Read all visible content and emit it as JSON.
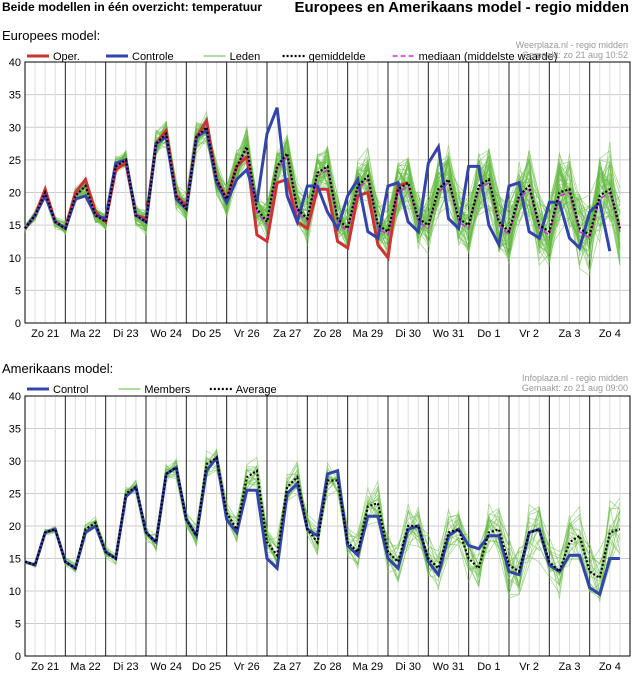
{
  "page": {
    "title_left": "Beide modellen in één overzicht: temperatuur",
    "title_right": "Europees en Amerikaans model - regio midden"
  },
  "chart_data": [
    {
      "type": "line",
      "section_title": "Europees model:",
      "credit_line1": "Weerplaza.nl - regio midden",
      "credit_line2": "Gemaakt: zo 21 aug 10:52",
      "ylim": [
        0,
        40
      ],
      "yticks": [
        0,
        5,
        10,
        15,
        20,
        25,
        30,
        35,
        40
      ],
      "xlim": [
        0,
        15
      ],
      "day_labels": [
        "Zo 21",
        "Ma 22",
        "Di 23",
        "Wo 24",
        "Do 25",
        "Vr 26",
        "Za 27",
        "Zo 28",
        "Ma 29",
        "Di 30",
        "Wo 31",
        "Do 1",
        "Vr 2",
        "Za 3",
        "Zo 4"
      ],
      "legend": [
        "Oper.",
        "Controle",
        "Leden",
        "gemiddelde",
        "mediaan (middelste waarde)"
      ],
      "x_step": 0.25,
      "series": {
        "oper": {
          "name": "Oper.",
          "color": "#cc3333",
          "values": [
            14.5,
            16.5,
            20.5,
            15.5,
            14.5,
            20,
            22,
            17,
            15.5,
            23.5,
            24.5,
            16.5,
            16,
            27.5,
            29.5,
            19.5,
            18,
            28.5,
            31,
            22,
            19,
            24,
            25.5,
            13.5,
            12.5,
            21.5,
            22,
            15.5,
            14.5,
            20.5,
            20.5,
            12.5,
            11.5,
            19.5,
            20,
            12,
            10,
            21,
            21.5
          ]
        },
        "control": {
          "name": "Controle",
          "color": "#3344aa",
          "values": [
            14.5,
            16.5,
            19.5,
            15.5,
            14.5,
            19,
            19.5,
            16.5,
            16,
            24.5,
            25,
            16.5,
            15.5,
            27.5,
            28.5,
            19,
            17.5,
            28.5,
            29.5,
            21.5,
            18.5,
            22,
            23.5,
            18.5,
            29,
            33,
            19.5,
            15.5,
            21,
            21,
            17,
            14.5,
            19.5,
            22,
            14,
            13,
            21,
            21.5,
            15.5,
            14,
            24.5,
            27,
            16,
            14.5,
            24,
            24,
            15,
            12,
            21,
            21.5,
            14,
            13,
            18.5,
            18.5,
            13,
            11.5,
            17,
            18.5,
            11
          ]
        },
        "mean": {
          "name": "gemiddelde",
          "color": "#000000",
          "values": [
            14.5,
            16.5,
            20,
            15.5,
            14.5,
            19.5,
            21,
            16.5,
            15.5,
            24,
            25,
            16.5,
            15.5,
            27.5,
            29,
            19.5,
            17.5,
            28.5,
            30,
            22,
            19,
            24,
            27,
            17.5,
            15.5,
            24,
            26,
            17.5,
            16,
            23,
            24,
            16,
            14.5,
            21,
            22.5,
            15,
            14,
            20.5,
            21.5,
            16,
            15,
            20.5,
            22,
            16,
            15,
            21,
            22,
            15.5,
            14,
            19.5,
            21,
            15,
            14,
            20,
            20.5,
            14.5,
            13.5,
            19.5,
            20.5,
            14.5
          ]
        },
        "median": {
          "name": "mediaan (middelste waarde)",
          "color": "#cc33cc",
          "values": [
            14.5,
            16.5,
            20,
            15.5,
            14.5,
            19.5,
            21,
            16.5,
            15.5,
            24,
            25,
            16.5,
            15.5,
            27.5,
            29,
            19.5,
            17.5,
            28.5,
            30,
            22,
            19,
            24,
            26.5,
            17,
            15,
            23.5,
            25.5,
            17,
            15.5,
            22.5,
            23.5,
            15.5,
            14,
            20.5,
            22,
            14.5,
            13.5,
            20,
            21,
            15.5,
            14.5,
            20,
            21.5,
            15.5,
            14.5,
            20.5,
            21.5,
            15,
            13.5,
            19,
            20.5,
            14.5,
            13.5,
            19.5,
            20,
            14,
            13,
            19,
            20,
            14
          ]
        }
      },
      "members_color": "#66bb44",
      "members_count": 50,
      "members_spread_start": 0.6,
      "members_spread_end": 5.5
    },
    {
      "type": "line",
      "section_title": "Amerikaans model:",
      "credit_line1": "Infoplaza.nl - regio midden",
      "credit_line2": "Gemaakt: zo 21 aug 09:00",
      "ylim": [
        0,
        40
      ],
      "yticks": [
        0,
        5,
        10,
        15,
        20,
        25,
        30,
        35,
        40
      ],
      "xlim": [
        0,
        15
      ],
      "day_labels": [
        "Zo 21",
        "Ma 22",
        "Di 23",
        "Wo 24",
        "Do 25",
        "Vr 26",
        "Za 27",
        "Zo 28",
        "Ma 29",
        "Di 30",
        "Wo 31",
        "Do 1",
        "Vr 2",
        "Za 3",
        "Zo 4"
      ],
      "legend": [
        "Control",
        "Members",
        "Average"
      ],
      "x_step": 0.25,
      "series": {
        "control": {
          "name": "Control",
          "color": "#3344aa",
          "values": [
            14.5,
            14,
            19,
            19.5,
            14.5,
            13.5,
            19,
            20,
            16,
            15,
            24.5,
            26,
            19,
            17.5,
            28,
            29,
            21,
            18.5,
            28.5,
            30.5,
            21,
            19,
            25.5,
            25.5,
            15,
            13.5,
            25,
            26.5,
            19.5,
            18.5,
            28,
            28.5,
            17,
            15.5,
            21.5,
            21.5,
            15,
            13.5,
            19.5,
            20,
            14.5,
            12.5,
            18.5,
            19.5,
            17,
            16.5,
            18.5,
            18.5,
            13,
            12.5,
            19,
            19.5,
            14,
            13,
            15.5,
            15.5,
            10.5,
            9.5,
            15,
            15
          ]
        },
        "average": {
          "name": "Average",
          "color": "#000000",
          "values": [
            14.5,
            14,
            19,
            19.5,
            14.5,
            13.5,
            19.5,
            20.5,
            16,
            15,
            25,
            26,
            19,
            17.5,
            28,
            29,
            21,
            18.5,
            29.5,
            30.5,
            22,
            19.5,
            27.5,
            28.5,
            17.5,
            15.5,
            26,
            27.5,
            19.5,
            17.5,
            27,
            27,
            17.5,
            16,
            23,
            23.5,
            16,
            14.5,
            20,
            20,
            15,
            13.5,
            19,
            19.5,
            15,
            13.5,
            19,
            19.5,
            14,
            13,
            19,
            19.5,
            14.5,
            13,
            17.5,
            18.5,
            13,
            12,
            19,
            19.5
          ]
        }
      },
      "members_color": "#66bb44",
      "members_count": 20,
      "members_spread_start": 0.3,
      "members_spread_end": 4.5
    }
  ]
}
